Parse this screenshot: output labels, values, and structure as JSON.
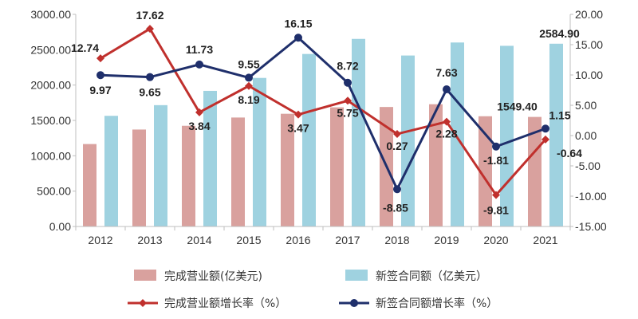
{
  "chart_data": {
    "type": "bar",
    "categories": [
      "2012",
      "2013",
      "2014",
      "2015",
      "2016",
      "2017",
      "2018",
      "2019",
      "2020",
      "2021"
    ],
    "left_axis": {
      "min": 0,
      "max": 3000,
      "step": 500,
      "ticks": [
        "0.00",
        "500.00",
        "1000.00",
        "1500.00",
        "2000.00",
        "2500.00",
        "3000.00"
      ]
    },
    "right_axis": {
      "min": -15,
      "max": 20,
      "step": 5,
      "ticks": [
        "-15.00",
        "-10.00",
        "-5.00",
        "0.00",
        "5.00",
        "10.00",
        "15.00",
        "20.00"
      ]
    },
    "series": [
      {
        "name": "完成营业额(亿美元)",
        "type": "bar",
        "axis": "left",
        "color": "#d9a19e",
        "values": [
          1166,
          1371,
          1424,
          1541,
          1594,
          1685,
          1690,
          1729,
          1559,
          1549.4
        ]
      },
      {
        "name": "新签合同额（亿美元）",
        "type": "bar",
        "axis": "left",
        "color": "#9fd2e0",
        "values": [
          1565,
          1716,
          1918,
          2101,
          2440,
          2653,
          2418,
          2602,
          2555,
          2584.9
        ]
      },
      {
        "name": "完成营业额增长率（%）",
        "type": "line",
        "axis": "right",
        "color": "#c0302d",
        "values": [
          12.74,
          17.62,
          3.84,
          8.19,
          3.47,
          5.75,
          0.27,
          2.28,
          -9.81,
          -0.64
        ]
      },
      {
        "name": "新签合同额增长率（%）",
        "type": "line",
        "axis": "right",
        "color": "#1f2f6b",
        "values": [
          9.97,
          9.65,
          11.73,
          9.55,
          16.15,
          8.72,
          -8.85,
          7.63,
          -1.81,
          1.15
        ]
      }
    ],
    "data_labels": [
      {
        "series": 2,
        "index": 0,
        "text": "12.74"
      },
      {
        "series": 2,
        "index": 1,
        "text": "17.62"
      },
      {
        "series": 2,
        "index": 2,
        "text": "3.84"
      },
      {
        "series": 2,
        "index": 3,
        "text": "8.19"
      },
      {
        "series": 2,
        "index": 4,
        "text": "3.47"
      },
      {
        "series": 2,
        "index": 5,
        "text": "5.75"
      },
      {
        "series": 2,
        "index": 6,
        "text": "0.27"
      },
      {
        "series": 2,
        "index": 7,
        "text": "2.28"
      },
      {
        "series": 2,
        "index": 8,
        "text": "-9.81"
      },
      {
        "series": 2,
        "index": 9,
        "text": "-0.64"
      },
      {
        "series": 3,
        "index": 0,
        "text": "9.97"
      },
      {
        "series": 3,
        "index": 1,
        "text": "9.65"
      },
      {
        "series": 3,
        "index": 2,
        "text": "11.73"
      },
      {
        "series": 3,
        "index": 3,
        "text": "9.55"
      },
      {
        "series": 3,
        "index": 4,
        "text": "16.15"
      },
      {
        "series": 3,
        "index": 5,
        "text": "8.72"
      },
      {
        "series": 3,
        "index": 6,
        "text": "-8.85"
      },
      {
        "series": 3,
        "index": 7,
        "text": "7.63"
      },
      {
        "series": 3,
        "index": 8,
        "text": "-1.81"
      },
      {
        "series": 3,
        "index": 9,
        "text": "1.15"
      },
      {
        "series": 0,
        "index": 9,
        "text": "1549.40"
      },
      {
        "series": 1,
        "index": 9,
        "text": "2584.90"
      }
    ],
    "legend": {
      "position": "bottom",
      "columns": 2
    },
    "grid": false
  }
}
